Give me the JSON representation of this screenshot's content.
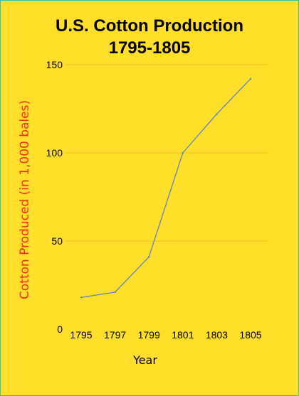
{
  "chart_data": {
    "type": "line",
    "title_line1": "U.S. Cotton Production",
    "title_line2": "1795-1805",
    "xlabel": "Year",
    "ylabel": "Cotton Produced  (in 1,000 bales)",
    "categories": [
      "1795",
      "1797",
      "1799",
      "1801",
      "1803",
      "1805"
    ],
    "series": [
      {
        "values": [
          18,
          21,
          41,
          100,
          122,
          142
        ]
      }
    ],
    "ylim": [
      0,
      150
    ],
    "yticks": [
      "0",
      "50",
      "100",
      "150"
    ],
    "grid": true,
    "legend": "none",
    "colors": {
      "background": "#ffdf2a",
      "line": "#5b84c4",
      "grid": "#e6c61a",
      "ylabel": "#ff2a1a"
    }
  }
}
